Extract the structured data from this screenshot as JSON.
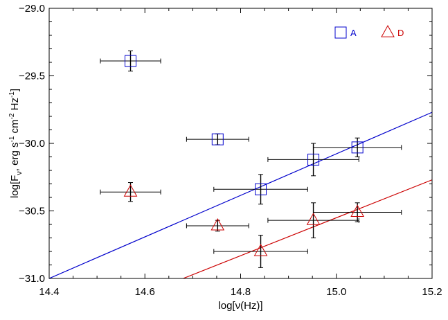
{
  "chart_data": {
    "type": "scatter",
    "xlabel": "log[ν(Hz)]",
    "ylabel": {
      "main": "log[F",
      "sub1": "ν",
      "mid": ", erg s",
      "sup1": "-1",
      "mid2": " cm",
      "sup2": "-2",
      "mid3": " Hz",
      "sup3": "-1",
      "end": "]"
    },
    "xlim": [
      14.4,
      15.2
    ],
    "ylim": [
      -31.0,
      -29.0
    ],
    "xticks": [
      14.4,
      14.6,
      14.8,
      15.0,
      15.2
    ],
    "xtick_labels": [
      "14.4",
      "14.6",
      "14.8",
      "15.0",
      "15.2"
    ],
    "yticks": [
      -29.0,
      -29.5,
      -30.0,
      -30.5,
      -31.0
    ],
    "ytick_labels": [
      "−29.0",
      "−29.5",
      "−30.0",
      "−30.5",
      "−31.0"
    ],
    "grid": false,
    "legend_position": "top-right",
    "series": [
      {
        "name": "A",
        "marker": "square",
        "color": "#0000cc",
        "points": [
          {
            "x": 14.57,
            "y": -29.39,
            "xerr": 0.063,
            "yerr": 0.075
          },
          {
            "x": 14.752,
            "y": -29.97,
            "xerr": 0.065,
            "yerr": 0.04
          },
          {
            "x": 14.842,
            "y": -30.34,
            "xerr": 0.098,
            "yerr": 0.11
          },
          {
            "x": 14.952,
            "y": -30.12,
            "xerr": 0.095,
            "yerr": 0.12
          },
          {
            "x": 15.044,
            "y": -30.03,
            "xerr": 0.092,
            "yerr": 0.07
          }
        ],
        "fit_line": {
          "x": [
            14.4,
            15.2
          ],
          "y": [
            -31.0,
            -29.77
          ]
        }
      },
      {
        "name": "D",
        "marker": "triangle",
        "color": "#cc0000",
        "points": [
          {
            "x": 14.57,
            "y": -30.36,
            "xerr": 0.063,
            "yerr": 0.07
          },
          {
            "x": 14.752,
            "y": -30.61,
            "xerr": 0.065,
            "yerr": 0.04
          },
          {
            "x": 14.842,
            "y": -30.8,
            "xerr": 0.098,
            "yerr": 0.12
          },
          {
            "x": 14.952,
            "y": -30.57,
            "xerr": 0.095,
            "yerr": 0.13
          },
          {
            "x": 15.044,
            "y": -30.51,
            "xerr": 0.092,
            "yerr": 0.07
          }
        ],
        "fit_line": {
          "x": [
            14.68,
            15.2
          ],
          "y": [
            -31.0,
            -30.27
          ]
        }
      }
    ]
  }
}
